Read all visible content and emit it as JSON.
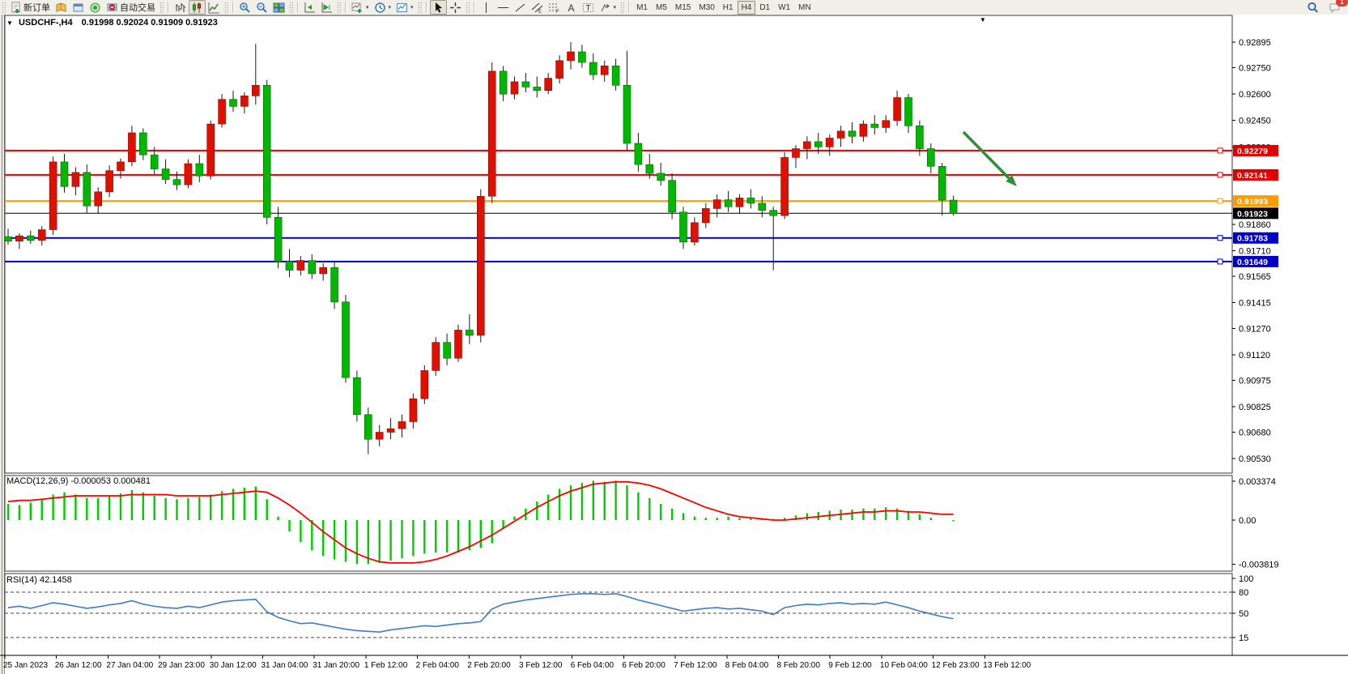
{
  "toolbar": {
    "groups": [
      {
        "items": [
          {
            "name": "new-order-button",
            "icon": "new-order",
            "label": "新订单"
          },
          {
            "name": "market-watch-button",
            "icon": "market-watch"
          },
          {
            "name": "data-window-button",
            "icon": "data-window"
          },
          {
            "name": "navigator-button",
            "icon": "navigator"
          },
          {
            "name": "autotrade-button",
            "icon": "autotrade",
            "label": "自动交易"
          }
        ]
      },
      {
        "items": [
          {
            "name": "bar-chart-button",
            "icon": "bars"
          },
          {
            "name": "candlestick-chart-button",
            "icon": "candles",
            "active": true
          },
          {
            "name": "line-chart-button",
            "icon": "linechart"
          }
        ]
      },
      {
        "items": [
          {
            "name": "zoom-in-button",
            "icon": "zoom-in"
          },
          {
            "name": "zoom-out-button",
            "icon": "zoom-out"
          },
          {
            "name": "tile-windows-button",
            "icon": "tile"
          }
        ]
      },
      {
        "items": [
          {
            "name": "auto-scroll-button",
            "icon": "auto-scroll"
          },
          {
            "name": "chart-shift-button",
            "icon": "chart-shift"
          }
        ]
      },
      {
        "items": [
          {
            "name": "indicators-button",
            "icon": "indicators",
            "dropdown": true
          },
          {
            "name": "periods-button",
            "icon": "clock",
            "dropdown": true
          },
          {
            "name": "templates-button",
            "icon": "template",
            "dropdown": true
          }
        ]
      },
      {
        "items": [
          {
            "name": "cursor-button",
            "icon": "cursor",
            "active": true
          },
          {
            "name": "crosshair-button",
            "icon": "crosshair"
          }
        ]
      },
      {
        "items": [
          {
            "name": "vertical-line-button",
            "icon": "vline"
          },
          {
            "name": "horizontal-line-button",
            "icon": "hline"
          },
          {
            "name": "trendline-button",
            "icon": "trendline"
          },
          {
            "name": "channel-button",
            "icon": "channel"
          },
          {
            "name": "fibonacci-button",
            "icon": "fibo"
          },
          {
            "name": "text-button",
            "icon": "text-a"
          },
          {
            "name": "label-button",
            "icon": "text-t"
          },
          {
            "name": "shapes-button",
            "icon": "shapes",
            "dropdown": true
          }
        ]
      },
      {
        "items": [
          {
            "name": "tf-m1",
            "tf": "M1"
          },
          {
            "name": "tf-m5",
            "tf": "M5"
          },
          {
            "name": "tf-m15",
            "tf": "M15"
          },
          {
            "name": "tf-m30",
            "tf": "M30"
          },
          {
            "name": "tf-h1",
            "tf": "H1"
          },
          {
            "name": "tf-h4",
            "tf": "H4",
            "active": true
          },
          {
            "name": "tf-d1",
            "tf": "D1"
          },
          {
            "name": "tf-w1",
            "tf": "W1"
          },
          {
            "name": "tf-mn",
            "tf": "MN"
          }
        ]
      }
    ],
    "right": [
      {
        "name": "search-button",
        "icon": "search"
      },
      {
        "name": "chat-button",
        "icon": "chat",
        "badge": "1"
      }
    ]
  },
  "chart": {
    "symbol_period": "USDCHF-,H4",
    "ohlc_text": "0.91998 0.92024 0.91909 0.91923",
    "scroll_marker": "▼"
  },
  "chart_data": {
    "type": "candlestick",
    "title": "USDCHF-,H4",
    "ohlc": {
      "open": "0.91998",
      "high": "0.92024",
      "low": "0.91909",
      "close": "0.91923"
    },
    "price_axis_ticks": [
      "0.92895",
      "0.92750",
      "0.92600",
      "0.92450",
      "0.92300",
      "0.91860",
      "0.91710",
      "0.91565",
      "0.91415",
      "0.91270",
      "0.91120",
      "0.90975",
      "0.90825",
      "0.90680",
      "0.90530"
    ],
    "x_labels": [
      "25 Jan 2023",
      "26 Jan 12:00",
      "27 Jan 04:00",
      "29 Jan 23:00",
      "30 Jan 12:00",
      "31 Jan 04:00",
      "31 Jan 20:00",
      "1 Feb 12:00",
      "2 Feb 04:00",
      "2 Feb 20:00",
      "3 Feb 12:00",
      "6 Feb 04:00",
      "6 Feb 20:00",
      "7 Feb 12:00",
      "8 Feb 04:00",
      "8 Feb 20:00",
      "9 Feb 12:00",
      "10 Feb 04:00",
      "12 Feb 23:00",
      "13 Feb 12:00"
    ],
    "level_lines": [
      {
        "price": 0.92279,
        "label": "0.92279",
        "color": "#e00000",
        "width": 2
      },
      {
        "price": 0.92141,
        "label": "0.92141",
        "color": "#e00000",
        "width": 2
      },
      {
        "price": 0.91993,
        "label": "0.91993",
        "color": "#ff9c00",
        "width": 2
      },
      {
        "price": 0.91923,
        "label": "0.91923",
        "color": "#000000",
        "width": 1
      },
      {
        "price": 0.91783,
        "label": "0.91783",
        "color": "#0000c8",
        "width": 2
      },
      {
        "price": 0.91649,
        "label": "0.91649",
        "color": "#0000c8",
        "width": 2
      }
    ],
    "arrow_annotation": {
      "from": [
        1190,
        163
      ],
      "to": [
        1256,
        230
      ],
      "color": "#2e8f3a"
    },
    "colors": {
      "bull": "#e01000",
      "bear": "#00b800",
      "wick": "#1a1a1a",
      "macd_hist": "#00cc00",
      "macd_signal": "#ff0000",
      "rsi_line": "#3c7cc8"
    },
    "candles": [
      [
        0.9179,
        0.91835,
        0.91745,
        0.91765
      ],
      [
        0.91765,
        0.9181,
        0.9172,
        0.91795
      ],
      [
        0.91795,
        0.91825,
        0.9175,
        0.9177
      ],
      [
        0.9177,
        0.9185,
        0.9174,
        0.9183
      ],
      [
        0.9183,
        0.92245,
        0.918,
        0.92215
      ],
      [
        0.92215,
        0.9226,
        0.9204,
        0.92075
      ],
      [
        0.92075,
        0.92185,
        0.92025,
        0.92155
      ],
      [
        0.92155,
        0.922,
        0.91925,
        0.91965
      ],
      [
        0.91965,
        0.9207,
        0.9192,
        0.92045
      ],
      [
        0.92045,
        0.92195,
        0.92015,
        0.92165
      ],
      [
        0.92165,
        0.92235,
        0.9212,
        0.92215
      ],
      [
        0.92215,
        0.9242,
        0.9219,
        0.9238
      ],
      [
        0.9238,
        0.92405,
        0.92225,
        0.92255
      ],
      [
        0.92255,
        0.923,
        0.92145,
        0.92175
      ],
      [
        0.92175,
        0.9223,
        0.9209,
        0.92115
      ],
      [
        0.92115,
        0.9216,
        0.92055,
        0.92085
      ],
      [
        0.92085,
        0.9223,
        0.92065,
        0.92205
      ],
      [
        0.92205,
        0.92255,
        0.921,
        0.92135
      ],
      [
        0.92135,
        0.9245,
        0.92115,
        0.9243
      ],
      [
        0.9243,
        0.926,
        0.9241,
        0.9257
      ],
      [
        0.9257,
        0.9262,
        0.925,
        0.9253
      ],
      [
        0.9253,
        0.9261,
        0.9249,
        0.9259
      ],
      [
        0.9259,
        0.92885,
        0.9254,
        0.9265
      ],
      [
        0.9265,
        0.9268,
        0.9186,
        0.919
      ],
      [
        0.919,
        0.9196,
        0.9161,
        0.9165
      ],
      [
        0.9165,
        0.9172,
        0.9156,
        0.916
      ],
      [
        0.916,
        0.9168,
        0.9157,
        0.91655
      ],
      [
        0.91655,
        0.9169,
        0.9155,
        0.9158
      ],
      [
        0.9158,
        0.9164,
        0.9154,
        0.91615
      ],
      [
        0.91615,
        0.9165,
        0.9138,
        0.9142
      ],
      [
        0.9142,
        0.9146,
        0.9096,
        0.9099
      ],
      [
        0.9099,
        0.9103,
        0.9074,
        0.9078
      ],
      [
        0.9078,
        0.9082,
        0.90555,
        0.9064
      ],
      [
        0.9064,
        0.9072,
        0.906,
        0.9068
      ],
      [
        0.9068,
        0.9076,
        0.9064,
        0.907
      ],
      [
        0.907,
        0.9078,
        0.9065,
        0.9074
      ],
      [
        0.9074,
        0.909,
        0.907,
        0.9087
      ],
      [
        0.9087,
        0.9106,
        0.9084,
        0.9103
      ],
      [
        0.9103,
        0.9122,
        0.91,
        0.9119
      ],
      [
        0.9119,
        0.9124,
        0.9106,
        0.911
      ],
      [
        0.911,
        0.9129,
        0.9108,
        0.9126
      ],
      [
        0.9126,
        0.9135,
        0.9118,
        0.9123
      ],
      [
        0.9123,
        0.9206,
        0.9119,
        0.9202
      ],
      [
        0.9202,
        0.9278,
        0.9198,
        0.9273
      ],
      [
        0.9273,
        0.9276,
        0.9256,
        0.926
      ],
      [
        0.926,
        0.927,
        0.9257,
        0.9267
      ],
      [
        0.9267,
        0.9272,
        0.9261,
        0.9264
      ],
      [
        0.9264,
        0.927,
        0.9258,
        0.9262
      ],
      [
        0.9262,
        0.9272,
        0.926,
        0.9269
      ],
      [
        0.9269,
        0.9282,
        0.9266,
        0.9279
      ],
      [
        0.9279,
        0.92895,
        0.9274,
        0.9284
      ],
      [
        0.9284,
        0.9288,
        0.9275,
        0.9278
      ],
      [
        0.9278,
        0.9283,
        0.9268,
        0.9271
      ],
      [
        0.9271,
        0.9279,
        0.9267,
        0.9276
      ],
      [
        0.9276,
        0.928,
        0.9262,
        0.9265
      ],
      [
        0.9265,
        0.92845,
        0.9228,
        0.9232
      ],
      [
        0.9232,
        0.9238,
        0.9216,
        0.922
      ],
      [
        0.922,
        0.9226,
        0.9212,
        0.9215
      ],
      [
        0.9215,
        0.9221,
        0.9208,
        0.9211
      ],
      [
        0.9211,
        0.9215,
        0.9189,
        0.9193
      ],
      [
        0.9193,
        0.9196,
        0.9172,
        0.9176
      ],
      [
        0.9176,
        0.919,
        0.9174,
        0.9187
      ],
      [
        0.9187,
        0.9198,
        0.9184,
        0.9195
      ],
      [
        0.9195,
        0.9203,
        0.919,
        0.92
      ],
      [
        0.92,
        0.9205,
        0.9193,
        0.9196
      ],
      [
        0.9196,
        0.9203,
        0.9192,
        0.9201
      ],
      [
        0.9201,
        0.9206,
        0.9195,
        0.9198
      ],
      [
        0.9198,
        0.9202,
        0.919,
        0.9194
      ],
      [
        0.9194,
        0.9196,
        0.916,
        0.9191
      ],
      [
        0.9191,
        0.9227,
        0.9189,
        0.9224
      ],
      [
        0.9224,
        0.9231,
        0.9218,
        0.9229
      ],
      [
        0.9229,
        0.9236,
        0.9223,
        0.9233
      ],
      [
        0.9233,
        0.9238,
        0.9226,
        0.923
      ],
      [
        0.923,
        0.9237,
        0.9225,
        0.9235
      ],
      [
        0.9235,
        0.9242,
        0.923,
        0.9239
      ],
      [
        0.9239,
        0.9244,
        0.9232,
        0.9236
      ],
      [
        0.9236,
        0.9245,
        0.9233,
        0.9243
      ],
      [
        0.9243,
        0.9248,
        0.9237,
        0.9241
      ],
      [
        0.9241,
        0.9248,
        0.9238,
        0.9245
      ],
      [
        0.9245,
        0.9262,
        0.9242,
        0.9258
      ],
      [
        0.9258,
        0.926,
        0.9238,
        0.9242
      ],
      [
        0.9242,
        0.9245,
        0.9225,
        0.9229
      ],
      [
        0.9229,
        0.9232,
        0.9215,
        0.9219
      ],
      [
        0.9219,
        0.9221,
        0.9191,
        0.91998
      ],
      [
        0.91998,
        0.92024,
        0.91909,
        0.91923
      ]
    ],
    "macd": {
      "label": "MACD(12,26,9) -0.000053 0.000481",
      "axis_ticks": [
        "0.003374",
        "0.00",
        "-0.003819"
      ],
      "hist": [
        0.0014,
        0.0013,
        0.0015,
        0.0018,
        0.0022,
        0.0024,
        0.0022,
        0.0019,
        0.0019,
        0.0021,
        0.0023,
        0.0026,
        0.0024,
        0.0021,
        0.0019,
        0.0018,
        0.0019,
        0.002,
        0.0022,
        0.0025,
        0.0027,
        0.0028,
        0.0029,
        0.0018,
        0.0003,
        -0.001,
        -0.0019,
        -0.0026,
        -0.0031,
        -0.0034,
        -0.0036,
        -0.0038,
        -0.0038,
        -0.0037,
        -0.0035,
        -0.0033,
        -0.0031,
        -0.0029,
        -0.0028,
        -0.0028,
        -0.0028,
        -0.0026,
        -0.0024,
        -0.002,
        -0.0008,
        0.0003,
        0.001,
        0.0016,
        0.0022,
        0.0027,
        0.003,
        0.0032,
        0.0034,
        0.0033,
        0.0034,
        0.003,
        0.0024,
        0.0019,
        0.0014,
        0.001,
        0.0006,
        0.0003,
        0.0002,
        0.0002,
        0.0003,
        0.0002,
        0.0002,
        0.0001,
        0.0001,
        0.0002,
        0.0004,
        0.0006,
        0.0007,
        0.0008,
        0.0009,
        0.0009,
        0.001,
        0.001,
        0.0011,
        0.001,
        0.0008,
        0.0005,
        0.0002,
        0.0,
        -0.0001
      ],
      "signal": [
        0.0016,
        0.0017,
        0.0017,
        0.0018,
        0.0019,
        0.002,
        0.0021,
        0.0021,
        0.0021,
        0.0021,
        0.0021,
        0.0022,
        0.0022,
        0.0022,
        0.0022,
        0.0021,
        0.0021,
        0.0021,
        0.0021,
        0.0022,
        0.0023,
        0.0024,
        0.0025,
        0.0024,
        0.0019,
        0.0013,
        0.0006,
        -0.0002,
        -0.001,
        -0.0017,
        -0.0024,
        -0.0029,
        -0.0033,
        -0.0036,
        -0.0037,
        -0.0037,
        -0.0037,
        -0.0036,
        -0.0034,
        -0.0031,
        -0.0027,
        -0.0023,
        -0.0018,
        -0.0013,
        -0.0007,
        -0.0001,
        0.0005,
        0.0011,
        0.0016,
        0.0021,
        0.0025,
        0.0028,
        0.0031,
        0.0032,
        0.0033,
        0.0033,
        0.0032,
        0.003,
        0.0027,
        0.0023,
        0.0019,
        0.0015,
        0.0011,
        0.0008,
        0.0005,
        0.0003,
        0.0002,
        0.0001,
        0.0,
        0.0,
        0.0001,
        0.0002,
        0.0003,
        0.0004,
        0.0005,
        0.0006,
        0.0007,
        0.0007,
        0.0008,
        0.0008,
        0.0007,
        0.0007,
        0.0006,
        0.0005,
        0.0005
      ]
    },
    "rsi": {
      "label": "RSI(14) 42.1458",
      "axis_ticks": [
        "100",
        "80",
        "50",
        "15"
      ],
      "level_values": [
        80,
        50,
        15
      ],
      "values": [
        58,
        60,
        57,
        61,
        65,
        63,
        60,
        57,
        59,
        62,
        64,
        68,
        63,
        60,
        58,
        57,
        60,
        58,
        62,
        66,
        68,
        69,
        70,
        52,
        44,
        39,
        35,
        36,
        33,
        30,
        27,
        25,
        24,
        23,
        26,
        28,
        30,
        32,
        31,
        33,
        35,
        36,
        38,
        56,
        63,
        66,
        69,
        71,
        73,
        75,
        77,
        78,
        78,
        77,
        78,
        74,
        69,
        65,
        61,
        57,
        53,
        55,
        57,
        58,
        56,
        57,
        55,
        53,
        48,
        58,
        61,
        63,
        62,
        64,
        65,
        63,
        64,
        63,
        66,
        62,
        58,
        53,
        49,
        45,
        42.1
      ]
    }
  }
}
